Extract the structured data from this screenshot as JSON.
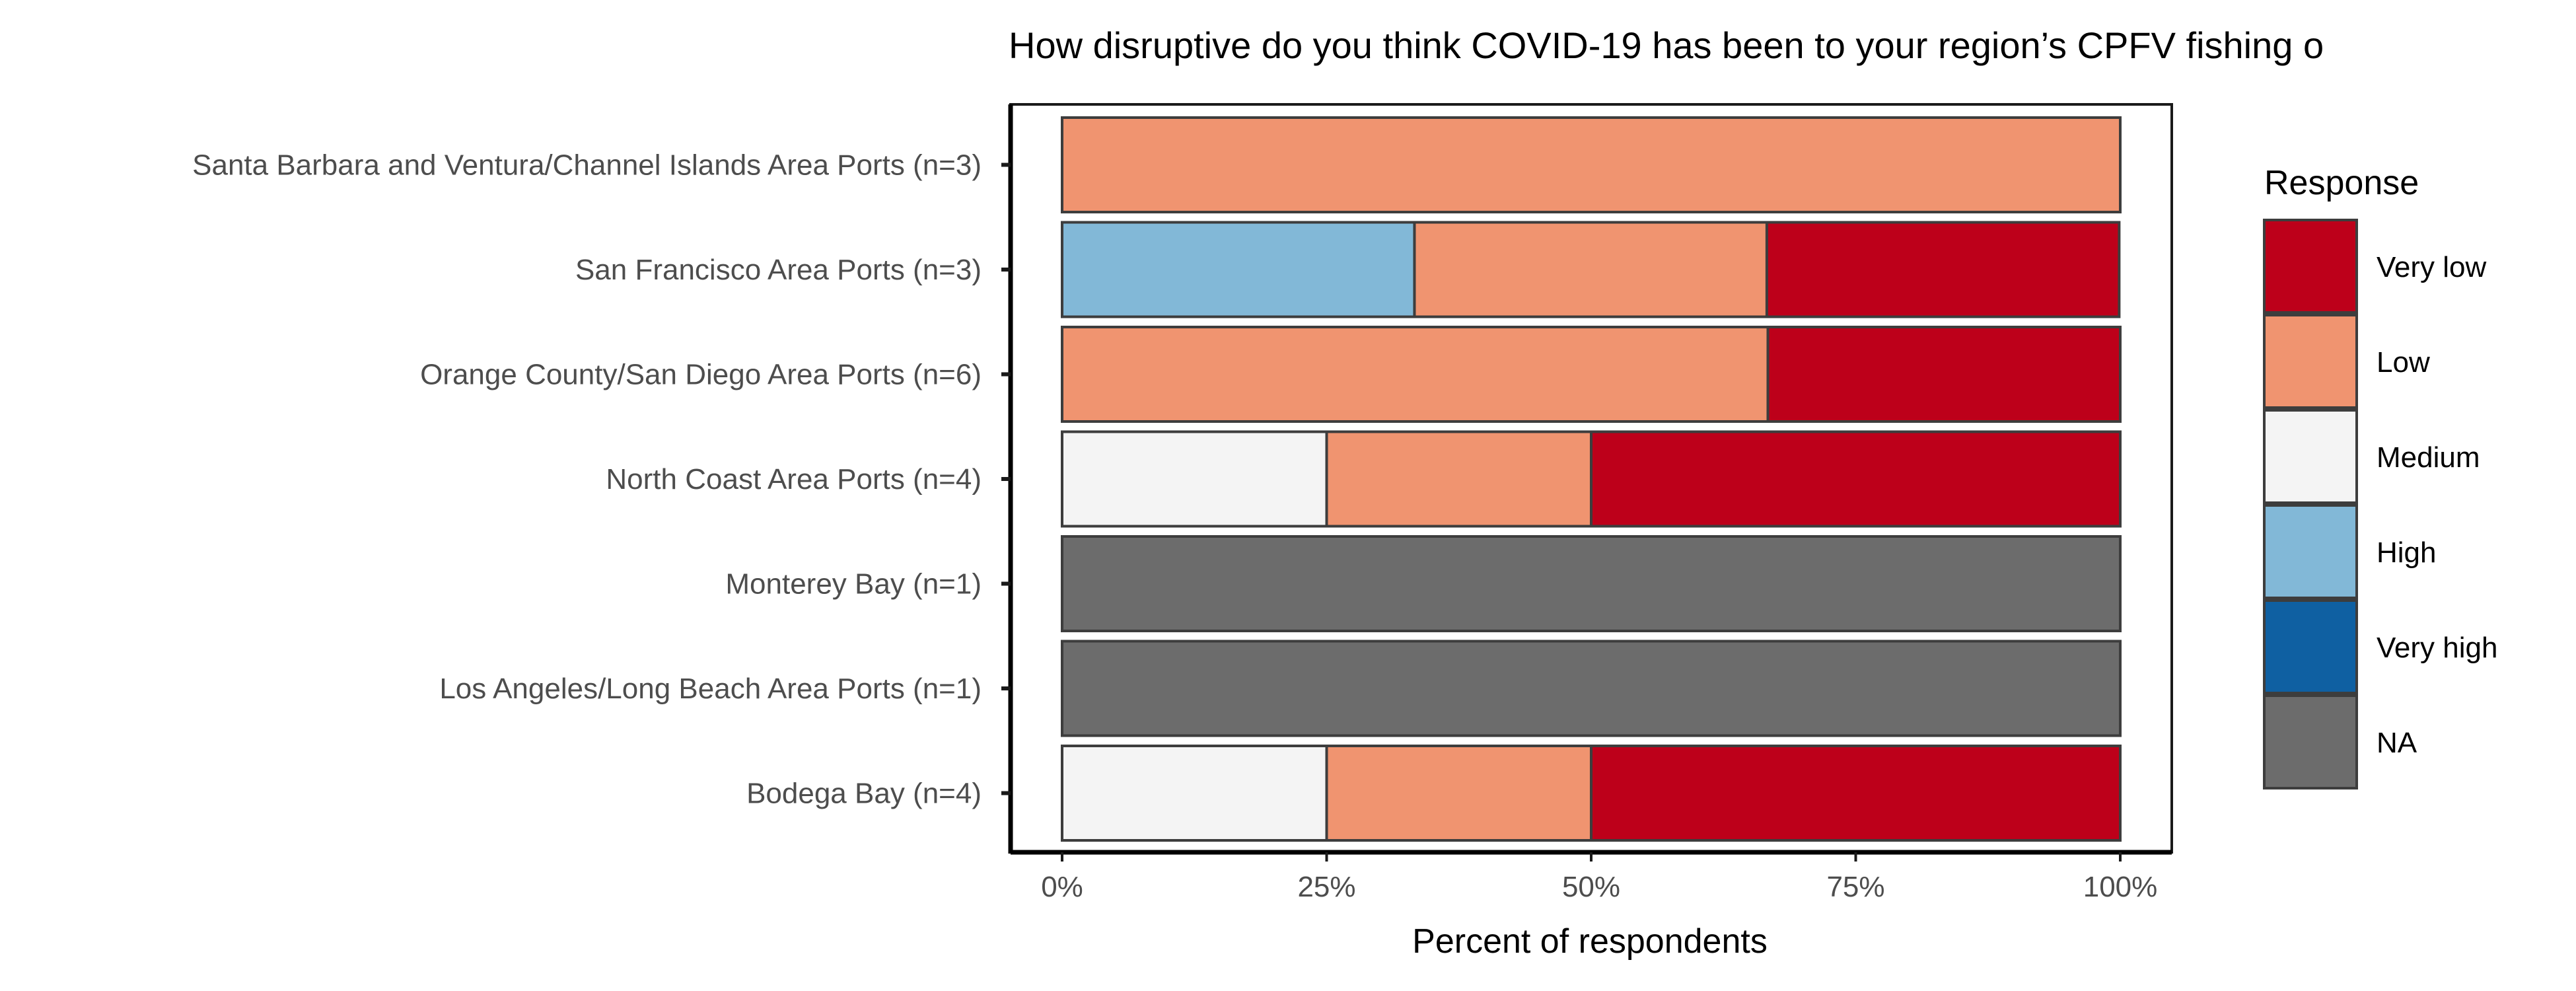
{
  "chart_data": {
    "type": "bar",
    "orientation": "horizontal",
    "stacked": true,
    "title": "How disruptive do you think COVID-19 has been to your region’s CPFV fishing o",
    "xlabel": "Percent of respondents",
    "ylabel": "",
    "xlim": [
      0,
      100
    ],
    "x_ticks": [
      "0%",
      "25%",
      "50%",
      "75%",
      "100%"
    ],
    "x_tick_values": [
      0,
      25,
      50,
      75,
      100
    ],
    "categories": [
      "Santa Barbara and Ventura/Channel Islands Area Ports (n=3)",
      "San Francisco Area Ports (n=3)",
      "Orange County/San Diego Area Ports (n=6)",
      "North Coast Area Ports (n=4)",
      "Monterey Bay (n=1)",
      "Los Angeles/Long Beach Area Ports (n=1)",
      "Bodega Bay (n=4)"
    ],
    "series": [
      {
        "name": "Very low",
        "color": "#bd001a",
        "values": [
          0,
          33.3,
          33.3,
          50,
          0,
          0,
          50
        ]
      },
      {
        "name": "Low",
        "color": "#f09470",
        "values": [
          100,
          33.3,
          66.7,
          25,
          0,
          0,
          25
        ]
      },
      {
        "name": "Medium",
        "color": "#f4f4f4",
        "values": [
          0,
          0,
          0,
          25,
          0,
          0,
          25
        ]
      },
      {
        "name": "High",
        "color": "#82b8d7",
        "values": [
          0,
          33.3,
          0,
          0,
          0,
          0,
          0
        ]
      },
      {
        "name": "Very high",
        "color": "#0f60a2",
        "values": [
          0,
          0,
          0,
          0,
          0,
          0,
          0
        ]
      },
      {
        "name": "NA",
        "color": "#6c6c6c",
        "values": [
          0,
          0,
          0,
          0,
          100,
          100,
          0
        ]
      }
    ],
    "legend": {
      "title": "Response",
      "position": "right"
    },
    "grid": false
  }
}
